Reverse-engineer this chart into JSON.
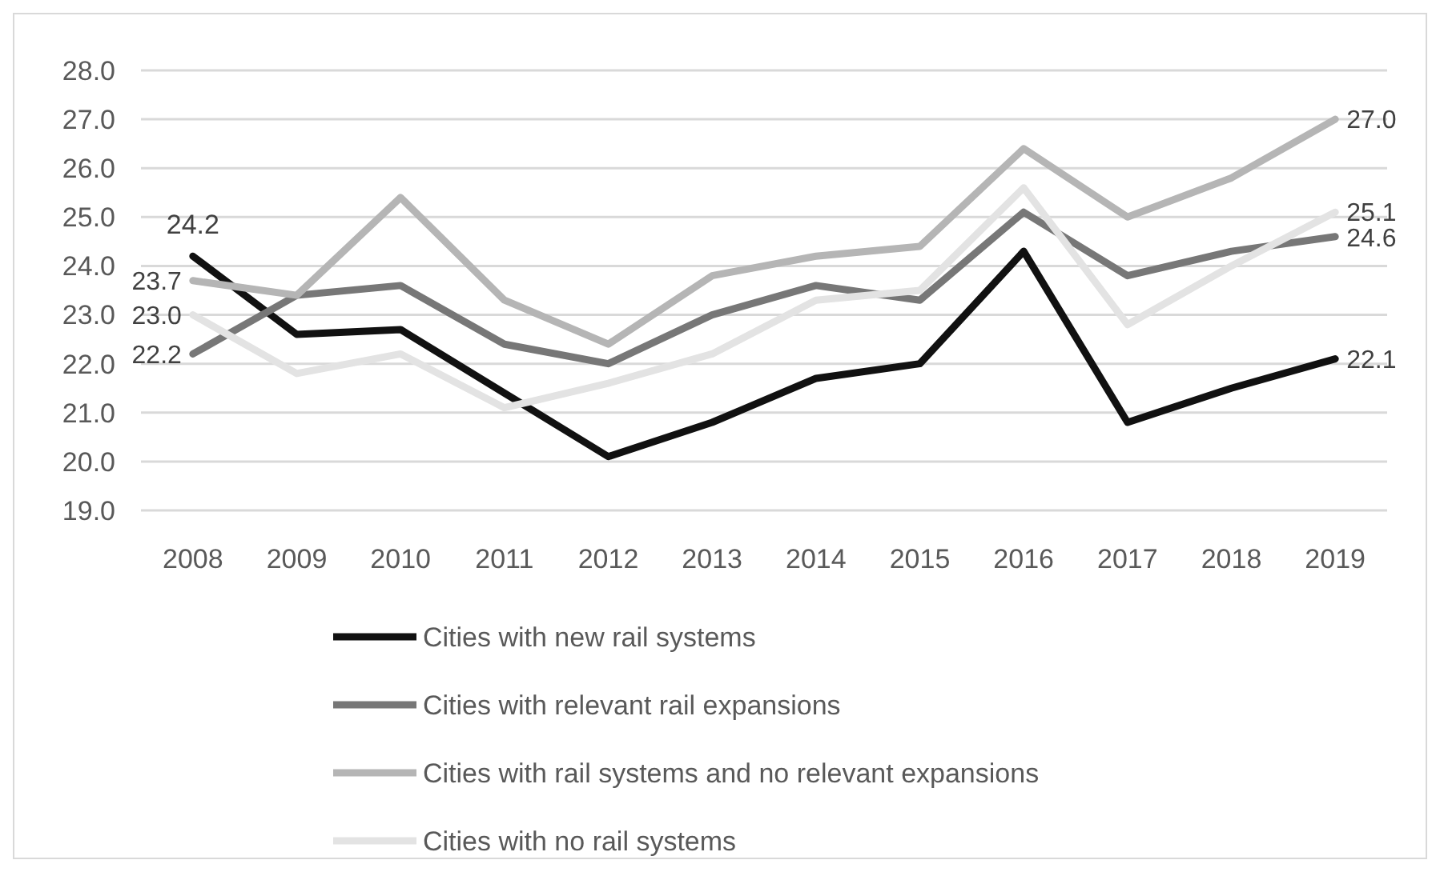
{
  "chart_data": {
    "type": "line",
    "categories": [
      "2008",
      "2009",
      "2010",
      "2011",
      "2012",
      "2013",
      "2014",
      "2015",
      "2016",
      "2017",
      "2018",
      "2019"
    ],
    "series": [
      {
        "name": "Cities with new rail systems",
        "color": "#111111",
        "values": [
          24.2,
          22.6,
          22.7,
          21.4,
          20.1,
          20.8,
          21.7,
          22.0,
          24.3,
          20.8,
          21.5,
          22.1
        ],
        "value_labels": [
          "24.2",
          null,
          null,
          null,
          null,
          null,
          null,
          null,
          null,
          null,
          null,
          "22.1"
        ]
      },
      {
        "name": "Cities with relevant rail expansions",
        "color": "#777777",
        "values": [
          22.2,
          23.4,
          23.6,
          22.4,
          22.0,
          23.0,
          23.6,
          23.3,
          25.1,
          23.8,
          24.3,
          24.6
        ],
        "value_labels": [
          "22.2",
          null,
          null,
          null,
          null,
          null,
          null,
          null,
          null,
          null,
          null,
          "24.6"
        ]
      },
      {
        "name": "Cities with rail systems and no relevant expansions",
        "color": "#b5b5b5",
        "values": [
          23.7,
          23.4,
          25.4,
          23.3,
          22.4,
          23.8,
          24.2,
          24.4,
          26.4,
          25.0,
          25.8,
          27.0
        ],
        "value_labels": [
          "23.7",
          null,
          null,
          null,
          null,
          null,
          null,
          null,
          null,
          null,
          null,
          "27.0"
        ]
      },
      {
        "name": "Cities with no rail systems",
        "color": "#e3e3e3",
        "values": [
          23.0,
          21.8,
          22.2,
          21.1,
          21.6,
          22.2,
          23.3,
          23.5,
          25.6,
          22.8,
          24.0,
          25.1
        ],
        "value_labels": [
          "23.0",
          null,
          null,
          null,
          null,
          null,
          null,
          null,
          null,
          null,
          null,
          "25.1"
        ]
      }
    ],
    "ylim": [
      19,
      28
    ],
    "yticks": [
      {
        "value": 19,
        "label": "19.0"
      },
      {
        "value": 20,
        "label": "20.0"
      },
      {
        "value": 21,
        "label": "21.0"
      },
      {
        "value": 22,
        "label": "22.0"
      },
      {
        "value": 23,
        "label": "23.0"
      },
      {
        "value": 24,
        "label": "24.0"
      },
      {
        "value": 25,
        "label": "25.0"
      },
      {
        "value": 26,
        "label": "26.0"
      },
      {
        "value": 27,
        "label": "27.0"
      },
      {
        "value": 28,
        "label": "28.0"
      }
    ],
    "grid": "y",
    "legend": "bottom",
    "marker": "none",
    "line_style": "solid"
  }
}
